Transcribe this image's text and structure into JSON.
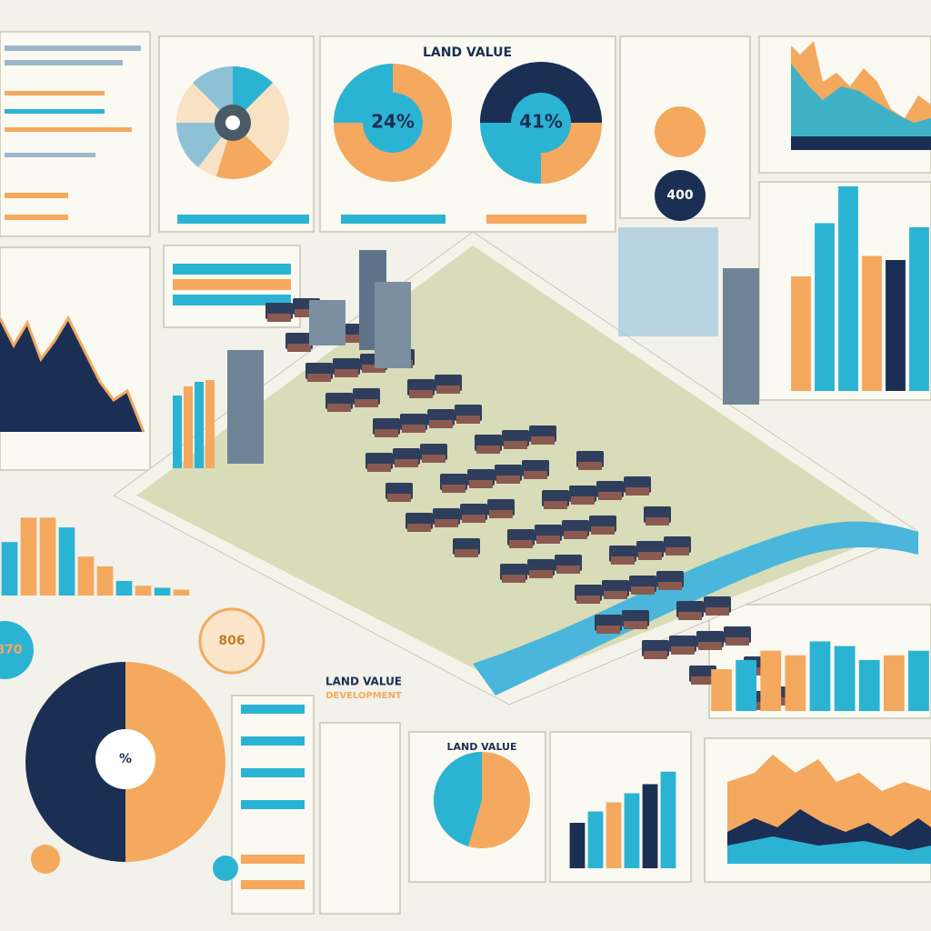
{
  "texts": {
    "top_title": "LAND VALUE",
    "donut_left": "24%",
    "donut_right": "41%",
    "circle_navy": "400",
    "circle_teal": "870",
    "circle_orange": "806",
    "pie_center": "%",
    "dev_title_1": "LAND VALUE",
    "dev_title_2": "DEVELOPMENT",
    "small_pie_title": "LAND VALUE"
  },
  "chart_data": [
    {
      "type": "bar",
      "categories": [
        null,
        null,
        null,
        null,
        null,
        null
      ],
      "values": [
        56,
        82,
        100,
        66,
        64,
        80
      ],
      "colors": [
        "#f4a95e",
        "#2bb3d4",
        "#2bb3d4",
        "#f4a95e",
        "#1b2f55",
        "#2bb3d4"
      ],
      "ylim": [
        0,
        100
      ]
    },
    {
      "type": "bar",
      "categories": [
        null,
        null,
        null,
        null,
        null,
        null,
        null,
        null,
        null,
        null
      ],
      "values": [
        55,
        80,
        80,
        70,
        40,
        30,
        15,
        10,
        8,
        6
      ],
      "colors": [
        "#2bb3d4",
        "#f4a95e",
        "#f4a95e",
        "#2bb3d4",
        "#f4a95e",
        "#f4a95e",
        "#2bb3d4",
        "#f4a95e",
        "#2bb3d4",
        "#f4a95e"
      ],
      "ylim": [
        0,
        100
      ]
    },
    {
      "type": "bar",
      "categories": [
        null,
        null,
        null,
        null,
        null,
        null
      ],
      "values": [
        40,
        50,
        58,
        66,
        74,
        85
      ],
      "colors": [
        "#1b2f55",
        "#2bb3d4",
        "#f4a95e",
        "#2bb3d4",
        "#1b2f55",
        "#2bb3d4"
      ],
      "ylim": [
        0,
        100
      ]
    },
    {
      "type": "bar",
      "categories": [
        null,
        null,
        null,
        null,
        null,
        null,
        null,
        null,
        null
      ],
      "values": [
        45,
        55,
        65,
        60,
        75,
        70,
        55,
        60,
        65
      ],
      "colors": [
        "#f4a95e",
        "#2bb3d4",
        "#f4a95e",
        "#f4a95e",
        "#2bb3d4",
        "#2bb3d4",
        "#2bb3d4",
        "#f4a95e",
        "#2bb3d4"
      ],
      "ylim": [
        0,
        100
      ]
    }
  ]
}
